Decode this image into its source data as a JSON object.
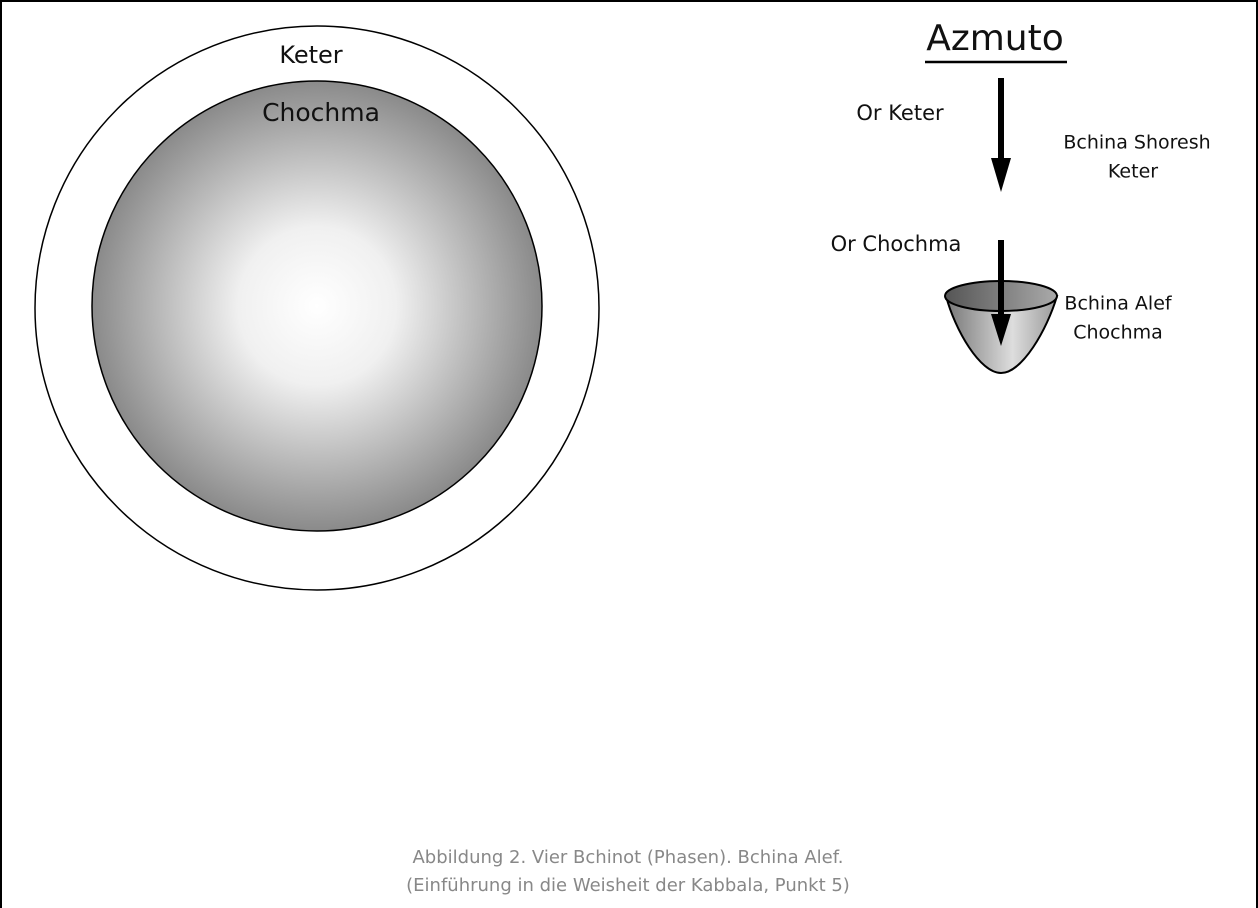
{
  "circles": {
    "outer": "Keter",
    "inner": "Chochma"
  },
  "header": {
    "title": "Azmuto"
  },
  "phases": [
    {
      "light": "Or Keter",
      "label": [
        "Bchina Shoresh",
        "Keter"
      ]
    },
    {
      "light": "Or Chochma",
      "label": [
        "Bchina Alef",
        "Chochma"
      ]
    }
  ],
  "caption": [
    "Abbildung 2. Vier Bchinot (Phasen). Bchina Alef.",
    "(Einführung in die Weisheit der Kabbala, Punkt 5)"
  ]
}
